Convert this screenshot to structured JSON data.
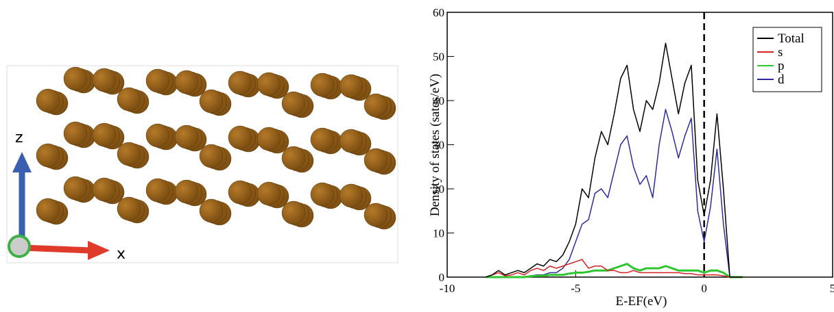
{
  "structure": {
    "axis_labels": [
      "z",
      "x"
    ]
  },
  "chart_data": {
    "type": "line",
    "y_label": "Density of states (sates/eV)",
    "x_label": "E-EF(eV)",
    "xlim": [
      -10,
      5
    ],
    "xticks": [
      -10,
      -5,
      0,
      5
    ],
    "ylim": [
      0,
      60
    ],
    "yticks": [
      0,
      10,
      20,
      30,
      40,
      50,
      60
    ],
    "vlines": [
      0
    ],
    "legend": "top-right",
    "x": [
      -8.5,
      -8.25,
      -8,
      -7.75,
      -7.5,
      -7.25,
      -7,
      -6.75,
      -6.5,
      -6.25,
      -6,
      -5.75,
      -5.5,
      -5.25,
      -5,
      -4.75,
      -4.5,
      -4.25,
      -4,
      -3.75,
      -3.5,
      -3.25,
      -3,
      -2.75,
      -2.5,
      -2.25,
      -2,
      -1.75,
      -1.5,
      -1.25,
      -1,
      -0.75,
      -0.5,
      -0.25,
      0,
      0.25,
      0.5,
      0.75,
      1,
      1.25,
      1.5
    ],
    "series": [
      {
        "name": "Total",
        "color": "#000000",
        "values": [
          0,
          0.5,
          1.5,
          0.5,
          1,
          1.5,
          1,
          2,
          3,
          2.5,
          4,
          3.5,
          5,
          8,
          12,
          20,
          18,
          27,
          33,
          30,
          37,
          45,
          48,
          38,
          33,
          40,
          38,
          44,
          53,
          45,
          37,
          44,
          48,
          22,
          14,
          22,
          37,
          20,
          0,
          0,
          0
        ]
      },
      {
        "name": "s",
        "color": "#d42020",
        "values": [
          0,
          0.5,
          1,
          0.3,
          0.5,
          1,
          0.5,
          1.5,
          2,
          1.5,
          2.5,
          2,
          2.5,
          3,
          3.5,
          4,
          2,
          2.5,
          2.5,
          1.5,
          1.5,
          1,
          1,
          1.5,
          1,
          1,
          1,
          1,
          1,
          1,
          1,
          0.8,
          0.8,
          0.5,
          0.5,
          0.5,
          0.5,
          0.3,
          0,
          0,
          0
        ]
      },
      {
        "name": "p",
        "color": "#2ec52e",
        "values": [
          0,
          0,
          0,
          0,
          0,
          0,
          0,
          0.2,
          0.3,
          0.3,
          0.5,
          0.5,
          0.5,
          0.8,
          1,
          1,
          1.2,
          1.5,
          1.5,
          1.5,
          2,
          2.5,
          3,
          2,
          1.5,
          2,
          2,
          2,
          2.5,
          2,
          1.5,
          1.5,
          1.5,
          1.5,
          1,
          1.5,
          1.5,
          1,
          0,
          0,
          0
        ]
      },
      {
        "name": "d",
        "color": "#2b2b9e",
        "values": [
          0,
          0,
          0,
          0,
          0,
          0,
          0,
          0.3,
          0.5,
          0.5,
          1,
          1,
          2,
          4,
          8,
          12,
          13,
          19,
          20,
          18,
          24,
          30,
          32,
          25,
          21,
          23,
          18,
          30,
          38,
          33,
          27,
          32,
          36,
          15,
          8,
          16,
          29,
          12,
          0,
          0,
          0
        ]
      }
    ]
  }
}
